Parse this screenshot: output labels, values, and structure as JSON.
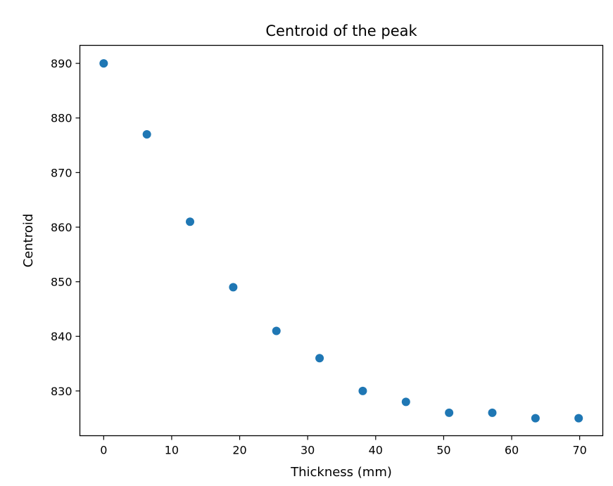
{
  "chart_data": {
    "type": "scatter",
    "title": "Centroid of the peak",
    "xlabel": "Thickness (mm)",
    "ylabel": "Centroid",
    "xlim": [
      -3.5,
      73.4
    ],
    "ylim": [
      821.8,
      893.3
    ],
    "xticks": [
      0,
      10,
      20,
      30,
      40,
      50,
      60,
      70
    ],
    "yticks": [
      830,
      840,
      850,
      860,
      870,
      880,
      890
    ],
    "grid": false,
    "marker_color": "#1f77b4",
    "series": [
      {
        "x": [
          0,
          6.35,
          12.7,
          19.05,
          25.4,
          31.75,
          38.1,
          44.45,
          50.8,
          57.15,
          63.5,
          69.85
        ],
        "y": [
          890,
          877,
          861,
          849,
          841,
          836,
          830,
          828,
          826,
          826,
          825,
          825
        ]
      }
    ]
  }
}
